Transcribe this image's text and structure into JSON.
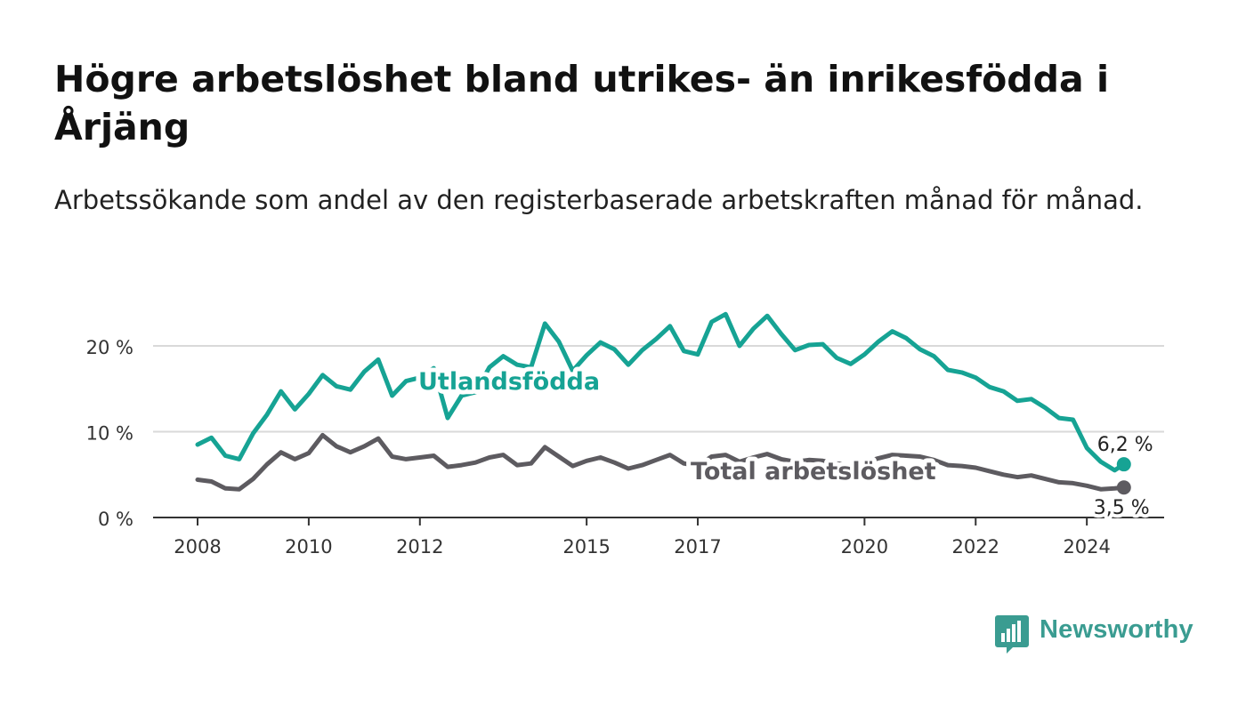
{
  "header": {
    "title": "Högre arbetslöshet bland utrikes- än inrikesfödda i Årjäng",
    "subtitle": "Arbetssökande som andel av den registerbaserade arbetskraften månad för månad."
  },
  "brand": {
    "name": "Newsworthy",
    "color": "#3a9c91"
  },
  "chart_data": {
    "type": "line",
    "title": "Högre arbetslöshet bland utrikes- än inrikesfödda i Årjäng",
    "xlabel": "",
    "ylabel": "",
    "xlim": [
      "2008-01",
      "2025-10"
    ],
    "ylim": [
      0,
      20
    ],
    "y_ticks": [
      0,
      10,
      20
    ],
    "y_tick_labels": [
      "0 %",
      "10 %",
      "20 %"
    ],
    "x_ticks": [
      "2008",
      "2010",
      "2012",
      "2015",
      "2017",
      "2020",
      "2022",
      "2024"
    ],
    "grid": true,
    "legend": "inline labels",
    "series": [
      {
        "name": "Utlandsfödda",
        "color": "#16a394",
        "end_label": "6,2 %",
        "points": [
          [
            "2008-01",
            8.5
          ],
          [
            "2008-04",
            9.3
          ],
          [
            "2008-07",
            7.2
          ],
          [
            "2008-10",
            6.8
          ],
          [
            "2009-01",
            9.8
          ],
          [
            "2009-04",
            12.0
          ],
          [
            "2009-07",
            14.7
          ],
          [
            "2009-10",
            12.6
          ],
          [
            "2010-01",
            14.4
          ],
          [
            "2010-04",
            16.6
          ],
          [
            "2010-07",
            15.3
          ],
          [
            "2010-10",
            14.9
          ],
          [
            "2011-01",
            17.0
          ],
          [
            "2011-04",
            18.4
          ],
          [
            "2011-07",
            14.2
          ],
          [
            "2011-10",
            15.9
          ],
          [
            "2012-01",
            16.3
          ],
          [
            "2012-04",
            17.4
          ],
          [
            "2012-07",
            11.6
          ],
          [
            "2012-10",
            14.2
          ],
          [
            "2013-01",
            14.6
          ],
          [
            "2013-04",
            17.5
          ],
          [
            "2013-07",
            18.8
          ],
          [
            "2013-10",
            17.8
          ],
          [
            "2014-01",
            17.5
          ],
          [
            "2014-04",
            22.6
          ],
          [
            "2014-07",
            20.5
          ],
          [
            "2014-10",
            17.1
          ],
          [
            "2015-01",
            18.9
          ],
          [
            "2015-04",
            20.4
          ],
          [
            "2015-07",
            19.6
          ],
          [
            "2015-10",
            17.8
          ],
          [
            "2016-01",
            19.5
          ],
          [
            "2016-04",
            20.8
          ],
          [
            "2016-07",
            22.3
          ],
          [
            "2016-10",
            19.4
          ],
          [
            "2017-01",
            19.0
          ],
          [
            "2017-04",
            22.8
          ],
          [
            "2017-07",
            23.7
          ],
          [
            "2017-10",
            20.0
          ],
          [
            "2018-01",
            22.0
          ],
          [
            "2018-04",
            23.5
          ],
          [
            "2018-07",
            21.4
          ],
          [
            "2018-10",
            19.5
          ],
          [
            "2019-01",
            20.1
          ],
          [
            "2019-04",
            20.2
          ],
          [
            "2019-07",
            18.6
          ],
          [
            "2019-10",
            17.9
          ],
          [
            "2020-01",
            19.0
          ],
          [
            "2020-04",
            20.5
          ],
          [
            "2020-07",
            21.7
          ],
          [
            "2020-10",
            20.9
          ],
          [
            "2021-01",
            19.6
          ],
          [
            "2021-04",
            18.8
          ],
          [
            "2021-07",
            17.2
          ],
          [
            "2021-10",
            16.9
          ],
          [
            "2022-01",
            16.3
          ],
          [
            "2022-04",
            15.2
          ],
          [
            "2022-07",
            14.7
          ],
          [
            "2022-10",
            13.6
          ],
          [
            "2023-01",
            13.8
          ],
          [
            "2023-04",
            12.8
          ],
          [
            "2023-07",
            11.6
          ],
          [
            "2023-10",
            11.4
          ],
          [
            "2024-01",
            8.1
          ],
          [
            "2024-04",
            6.5
          ],
          [
            "2024-07",
            5.5
          ],
          [
            "2024-09",
            6.2
          ]
        ]
      },
      {
        "name": "Total arbetslöshet",
        "color": "#5d5b60",
        "end_label": "3,5 %",
        "points": [
          [
            "2008-01",
            4.4
          ],
          [
            "2008-04",
            4.2
          ],
          [
            "2008-07",
            3.4
          ],
          [
            "2008-10",
            3.3
          ],
          [
            "2009-01",
            4.5
          ],
          [
            "2009-04",
            6.2
          ],
          [
            "2009-07",
            7.6
          ],
          [
            "2009-10",
            6.8
          ],
          [
            "2010-01",
            7.5
          ],
          [
            "2010-04",
            9.6
          ],
          [
            "2010-07",
            8.3
          ],
          [
            "2010-10",
            7.6
          ],
          [
            "2011-01",
            8.3
          ],
          [
            "2011-04",
            9.2
          ],
          [
            "2011-07",
            7.1
          ],
          [
            "2011-10",
            6.8
          ],
          [
            "2012-01",
            7.0
          ],
          [
            "2012-04",
            7.2
          ],
          [
            "2012-07",
            5.9
          ],
          [
            "2012-10",
            6.1
          ],
          [
            "2013-01",
            6.4
          ],
          [
            "2013-04",
            7.0
          ],
          [
            "2013-07",
            7.3
          ],
          [
            "2013-10",
            6.1
          ],
          [
            "2014-01",
            6.3
          ],
          [
            "2014-04",
            8.2
          ],
          [
            "2014-07",
            7.1
          ],
          [
            "2014-10",
            6.0
          ],
          [
            "2015-01",
            6.6
          ],
          [
            "2015-04",
            7.0
          ],
          [
            "2015-07",
            6.4
          ],
          [
            "2015-10",
            5.7
          ],
          [
            "2016-01",
            6.1
          ],
          [
            "2016-04",
            6.7
          ],
          [
            "2016-07",
            7.3
          ],
          [
            "2016-10",
            6.3
          ],
          [
            "2017-01",
            6.0
          ],
          [
            "2017-04",
            7.1
          ],
          [
            "2017-07",
            7.3
          ],
          [
            "2017-10",
            6.5
          ],
          [
            "2018-01",
            7.0
          ],
          [
            "2018-04",
            7.4
          ],
          [
            "2018-07",
            6.8
          ],
          [
            "2018-10",
            6.5
          ],
          [
            "2019-01",
            6.7
          ],
          [
            "2019-04",
            6.6
          ],
          [
            "2019-07",
            6.3
          ],
          [
            "2019-10",
            6.1
          ],
          [
            "2020-01",
            6.4
          ],
          [
            "2020-04",
            6.9
          ],
          [
            "2020-07",
            7.3
          ],
          [
            "2020-10",
            7.2
          ],
          [
            "2021-01",
            7.1
          ],
          [
            "2021-04",
            6.7
          ],
          [
            "2021-07",
            6.1
          ],
          [
            "2021-10",
            6.0
          ],
          [
            "2022-01",
            5.8
          ],
          [
            "2022-04",
            5.4
          ],
          [
            "2022-07",
            5.0
          ],
          [
            "2022-10",
            4.7
          ],
          [
            "2023-01",
            4.9
          ],
          [
            "2023-04",
            4.5
          ],
          [
            "2023-07",
            4.1
          ],
          [
            "2023-10",
            4.0
          ],
          [
            "2024-01",
            3.7
          ],
          [
            "2024-04",
            3.3
          ],
          [
            "2024-07",
            3.4
          ],
          [
            "2024-09",
            3.5
          ]
        ]
      }
    ]
  }
}
